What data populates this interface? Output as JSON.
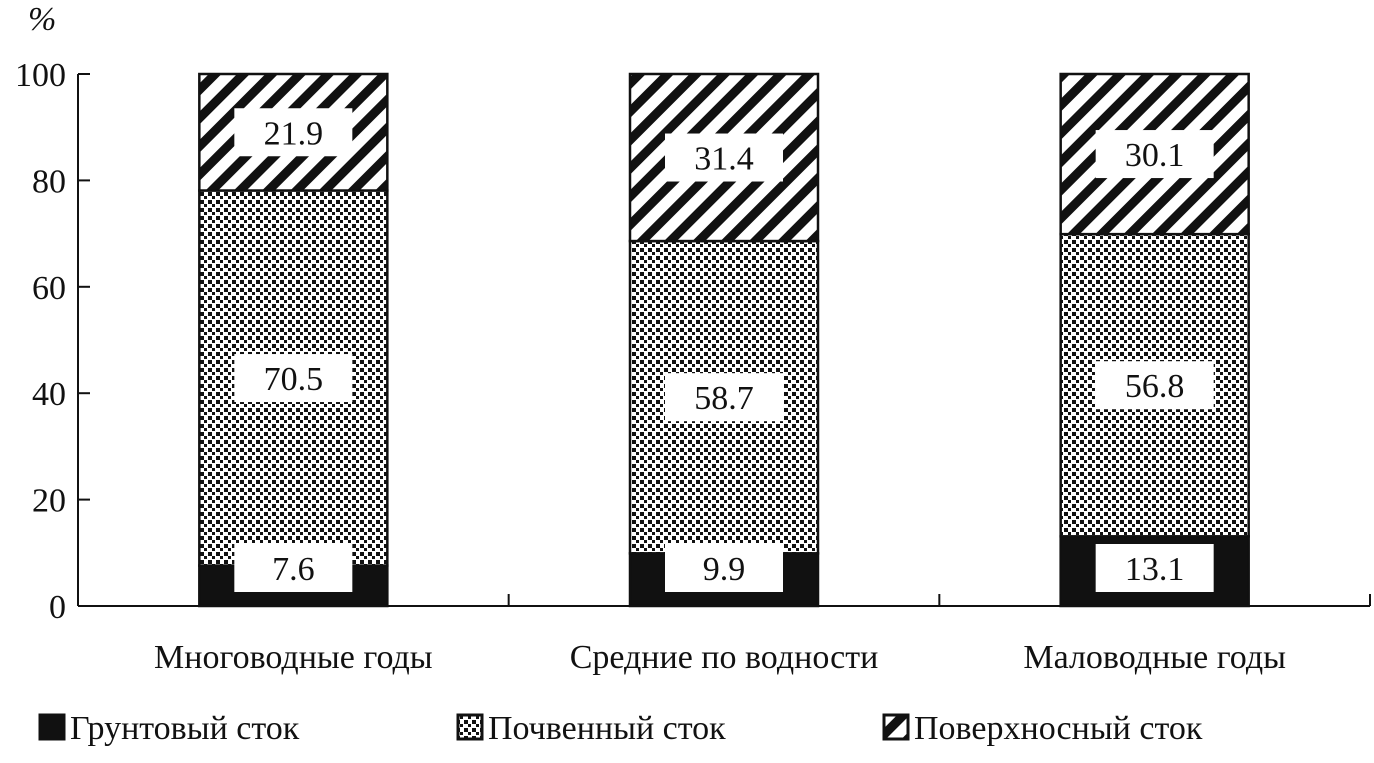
{
  "chart_data": {
    "type": "bar",
    "stacked": true,
    "title": "",
    "xlabel": "",
    "ylabel": "",
    "y_unit": "%",
    "ylim": [
      0,
      100
    ],
    "yticks": [
      0,
      20,
      40,
      60,
      80,
      100
    ],
    "grid": false,
    "legend_position": "bottom",
    "categories": [
      "Многоводные годы",
      "Средние по водности",
      "Маловодные годы"
    ],
    "series": [
      {
        "name": "Грунтовый сток",
        "pattern": "solid",
        "color": "#111111",
        "values": [
          7.6,
          9.9,
          13.1
        ]
      },
      {
        "name": "Почвенный сток",
        "pattern": "dots",
        "color": "#111111",
        "values": [
          70.5,
          58.7,
          56.8
        ]
      },
      {
        "name": "Поверхносный сток",
        "pattern": "diagonal-stripes",
        "color": "#111111",
        "values": [
          21.9,
          31.4,
          30.1
        ]
      }
    ]
  }
}
